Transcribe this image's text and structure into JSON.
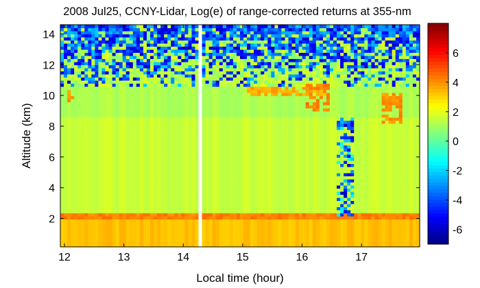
{
  "chart_data": {
    "type": "heatmap",
    "title": "2008 Jul25, CCNY-Lidar, Log(e) of range-corrected returns at 355-nm",
    "xlabel": "Local time (hour)",
    "ylabel": "Altitude (km)",
    "xlim": [
      11.93,
      17.98
    ],
    "ylim": [
      0.15,
      14.6
    ],
    "x_ticks": [
      12,
      13,
      14,
      15,
      16,
      17
    ],
    "y_ticks": [
      2,
      4,
      6,
      8,
      10,
      12,
      14
    ],
    "colorbar": {
      "colormap": "jet",
      "range": [
        -7,
        8
      ],
      "ticks": [
        -6,
        -4,
        -2,
        0,
        2,
        4,
        6
      ]
    },
    "data_gap": [
      14.23,
      14.29
    ],
    "layers": [
      {
        "bottom_km": 0.15,
        "top_km": 2.1,
        "value": 3.3
      },
      {
        "bottom_km": 2.1,
        "top_km": 8.5,
        "value": 1.6
      },
      {
        "bottom_km": 8.5,
        "top_km": 10.5,
        "value": 1.2
      },
      {
        "bottom_km": 10.5,
        "top_km": 12.5,
        "value": 0.0
      },
      {
        "bottom_km": 12.5,
        "top_km": 14.6,
        "value": -5.0
      }
    ],
    "cloud_features": [
      {
        "time_start": 15.1,
        "time_end": 16.4,
        "alt_bottom_km": 9.9,
        "alt_top_km": 10.6,
        "value": 3.2
      },
      {
        "time_start": 16.05,
        "time_end": 16.45,
        "alt_bottom_km": 9.0,
        "alt_top_km": 10.8,
        "value": 3.8
      },
      {
        "time_start": 17.35,
        "time_end": 17.7,
        "alt_bottom_km": 8.2,
        "alt_top_km": 10.2,
        "value": 3.6
      },
      {
        "time_start": 12.05,
        "time_end": 12.15,
        "alt_bottom_km": 9.6,
        "alt_top_km": 10.4,
        "value": 3.5
      },
      {
        "time_start": 16.6,
        "time_end": 16.85,
        "alt_bottom_km": 2.2,
        "alt_top_km": 8.5,
        "value": -3.0
      }
    ],
    "colors": {
      "dark_blue": "#00008f",
      "dark_red": "#8f0000",
      "background": "#ffffff"
    }
  }
}
